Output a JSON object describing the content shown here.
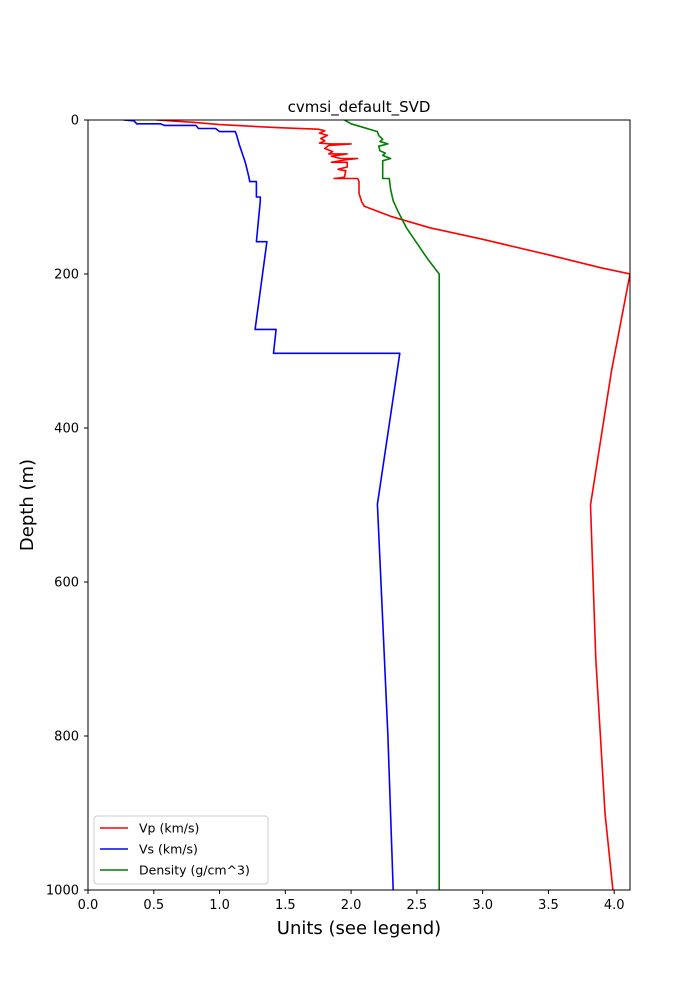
{
  "chart_data": {
    "type": "line",
    "title": "cvmsi_default_SVD",
    "xlabel": "Units (see legend)",
    "ylabel": "Depth (m)",
    "xlim": [
      0,
      4.12
    ],
    "ylim": [
      1000,
      0
    ],
    "y_inverted": true,
    "grid": false,
    "legend_position": "lower-left",
    "xticks": [
      0.0,
      0.5,
      1.0,
      1.5,
      2.0,
      2.5,
      3.0,
      3.5,
      4.0
    ],
    "xtick_labels": [
      "0.0",
      "0.5",
      "1.0",
      "1.5",
      "2.0",
      "2.5",
      "3.0",
      "3.5",
      "4.0"
    ],
    "yticks": [
      0,
      200,
      400,
      600,
      800,
      1000
    ],
    "ytick_labels": [
      "0",
      "200",
      "400",
      "600",
      "800",
      "1000"
    ],
    "series": [
      {
        "name": "Vp (km/s)",
        "color": "#ff0000",
        "points": [
          [
            0.52,
            0
          ],
          [
            0.8,
            3
          ],
          [
            1.0,
            6
          ],
          [
            1.45,
            10
          ],
          [
            1.75,
            12
          ],
          [
            1.8,
            14
          ],
          [
            1.76,
            17
          ],
          [
            1.82,
            20
          ],
          [
            1.77,
            24
          ],
          [
            1.8,
            27
          ],
          [
            1.76,
            30
          ],
          [
            1.84,
            31
          ],
          [
            2.0,
            31
          ],
          [
            1.83,
            33
          ],
          [
            1.8,
            37
          ],
          [
            1.86,
            41
          ],
          [
            1.83,
            44
          ],
          [
            1.97,
            44
          ],
          [
            1.85,
            47
          ],
          [
            1.92,
            50
          ],
          [
            2.05,
            50
          ],
          [
            1.95,
            52
          ],
          [
            1.85,
            55
          ],
          [
            1.97,
            55
          ],
          [
            1.97,
            61
          ],
          [
            1.9,
            64
          ],
          [
            1.96,
            66
          ],
          [
            1.95,
            74
          ],
          [
            1.92,
            75
          ],
          [
            1.87,
            76
          ],
          [
            2.05,
            76
          ],
          [
            2.06,
            80
          ],
          [
            2.06,
            95
          ],
          [
            2.08,
            106
          ],
          [
            2.1,
            112
          ],
          [
            2.3,
            125
          ],
          [
            2.6,
            140
          ],
          [
            3.0,
            155
          ],
          [
            3.5,
            175
          ],
          [
            3.9,
            192
          ],
          [
            4.12,
            200
          ],
          [
            3.98,
            325
          ],
          [
            3.82,
            500
          ],
          [
            3.86,
            700
          ],
          [
            3.93,
            900
          ],
          [
            3.99,
            1000
          ]
        ]
      },
      {
        "name": "Vs (km/s)",
        "color": "#0000ff",
        "points": [
          [
            0.27,
            0
          ],
          [
            0.35,
            1
          ],
          [
            0.37,
            5
          ],
          [
            0.55,
            5
          ],
          [
            0.58,
            7
          ],
          [
            0.82,
            7
          ],
          [
            0.84,
            11
          ],
          [
            0.97,
            11
          ],
          [
            1.0,
            15
          ],
          [
            1.12,
            15
          ],
          [
            1.13,
            20
          ],
          [
            1.14,
            26
          ],
          [
            1.15,
            32
          ],
          [
            1.16,
            37
          ],
          [
            1.17,
            42
          ],
          [
            1.18,
            47
          ],
          [
            1.19,
            52
          ],
          [
            1.2,
            58
          ],
          [
            1.21,
            65
          ],
          [
            1.22,
            72
          ],
          [
            1.23,
            80
          ],
          [
            1.28,
            80
          ],
          [
            1.28,
            100
          ],
          [
            1.31,
            100
          ],
          [
            1.31,
            105
          ],
          [
            1.28,
            158
          ],
          [
            1.36,
            158
          ],
          [
            1.27,
            272
          ],
          [
            1.43,
            272
          ],
          [
            1.41,
            303
          ],
          [
            2.37,
            303
          ],
          [
            2.2,
            499
          ],
          [
            2.24,
            650
          ],
          [
            2.28,
            800
          ],
          [
            2.32,
            1000
          ]
        ]
      },
      {
        "name": "Density (g/cm^3)",
        "color": "#008000",
        "points": [
          [
            1.95,
            0
          ],
          [
            2.0,
            5
          ],
          [
            2.1,
            10
          ],
          [
            2.2,
            15
          ],
          [
            2.21,
            20
          ],
          [
            2.24,
            25
          ],
          [
            2.22,
            28
          ],
          [
            2.28,
            31
          ],
          [
            2.21,
            34
          ],
          [
            2.22,
            40
          ],
          [
            2.26,
            43
          ],
          [
            2.24,
            46
          ],
          [
            2.3,
            50
          ],
          [
            2.24,
            53
          ],
          [
            2.24,
            76
          ],
          [
            2.29,
            76
          ],
          [
            2.3,
            90
          ],
          [
            2.32,
            105
          ],
          [
            2.36,
            120
          ],
          [
            2.42,
            140
          ],
          [
            2.5,
            160
          ],
          [
            2.58,
            180
          ],
          [
            2.67,
            200
          ],
          [
            2.67,
            1000
          ]
        ]
      }
    ]
  }
}
